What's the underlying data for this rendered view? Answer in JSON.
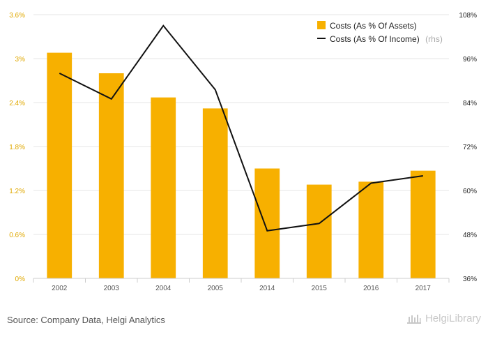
{
  "chart_data": {
    "type": "bar",
    "categories": [
      "2002",
      "2003",
      "2004",
      "2005",
      "2014",
      "2015",
      "2016",
      "2017"
    ],
    "series": [
      {
        "name": "Costs (As % Of Assets)",
        "type": "bar",
        "axis": "left",
        "color": "#f7b000",
        "values": [
          3.08,
          2.8,
          2.47,
          2.32,
          1.5,
          1.28,
          1.32,
          1.47
        ]
      },
      {
        "name": "Costs (As % Of Income)",
        "name_suffix": "(rhs)",
        "type": "line",
        "axis": "right",
        "color": "#111111",
        "values": [
          92.0,
          85.0,
          105.0,
          87.5,
          49.0,
          51.0,
          62.0,
          64.0
        ]
      }
    ],
    "yleft": {
      "ylim": [
        0,
        3.6
      ],
      "ticks": [
        "0%",
        "0.6%",
        "1.2%",
        "1.8%",
        "2.4%",
        "3%",
        "3.6%"
      ]
    },
    "yright": {
      "ylim": [
        36,
        108
      ],
      "ticks": [
        "36%",
        "48%",
        "60%",
        "72%",
        "84%",
        "96%",
        "108%"
      ]
    },
    "grid": true,
    "legend": "top-right"
  },
  "footer": {
    "source": "Source: Company Data, Helgi Analytics",
    "logo_text": "HelgiLibrary"
  }
}
